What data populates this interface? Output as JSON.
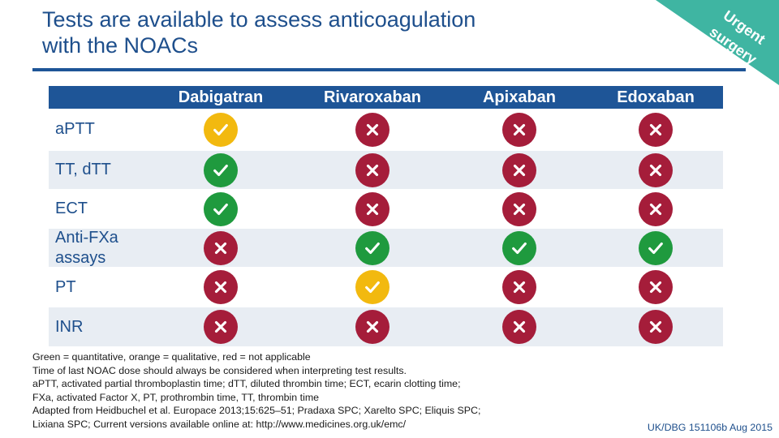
{
  "title": {
    "line1": "Tests are available to assess anticoagulation",
    "line2": "with the NOACs"
  },
  "banner": {
    "line1": "Urgent",
    "line2": "surgery",
    "color": "#3fb5a2"
  },
  "colors": {
    "header": "#1e5597",
    "label_text": "#1e4f8c",
    "green": "#1f9a3e",
    "orange": "#f2b90f",
    "red": "#a51d3a"
  },
  "table": {
    "columns": [
      "Dabigatran",
      "Rivaroxaban",
      "Apixaban",
      "Edoxaban"
    ],
    "rows": [
      {
        "label_lines": [
          "aPTT"
        ],
        "cells": [
          "orange",
          "red",
          "red",
          "red"
        ]
      },
      {
        "label_lines": [
          "TT, dTT"
        ],
        "cells": [
          "green",
          "red",
          "red",
          "red"
        ]
      },
      {
        "label_lines": [
          "ECT"
        ],
        "cells": [
          "green",
          "red",
          "red",
          "red"
        ]
      },
      {
        "label_lines": [
          "Anti-FXa",
          "assays"
        ],
        "cells": [
          "red",
          "green",
          "green",
          "green"
        ]
      },
      {
        "label_lines": [
          "PT"
        ],
        "cells": [
          "red",
          "orange",
          "red",
          "red"
        ]
      },
      {
        "label_lines": [
          "INR"
        ],
        "cells": [
          "red",
          "red",
          "red",
          "red"
        ]
      }
    ]
  },
  "notes": [
    "Green = quantitative, orange = qualitative, red = not applicable",
    "Time of last NOAC dose should always be considered when interpreting test results.",
    "aPTT, activated partial thromboplastin time; dTT, diluted thrombin time; ECT, ecarin clotting time;",
    "FXa, activated Factor X, PT, prothrombin time, TT, thrombin time",
    "Adapted from Heidbuchel et al. Europace 2013;15:625–51; Pradaxa SPC; Xarelto SPC; Eliquis SPC;",
    "Lixiana SPC; Current versions available online at: http://www.medicines.org.uk/emc/"
  ],
  "reference_code": "UK/DBG 151106b Aug 2015"
}
